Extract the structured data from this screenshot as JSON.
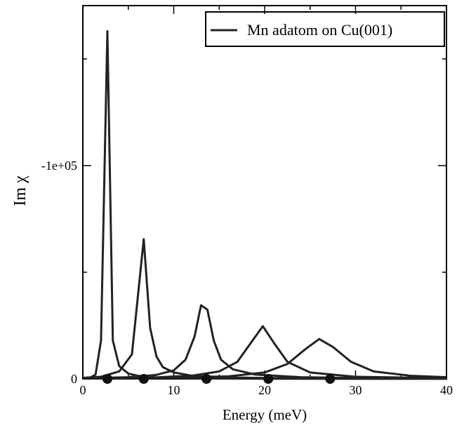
{
  "chart_data": {
    "type": "line",
    "x_label": "Energy (meV)",
    "y_label": "Im χ",
    "xlim": [
      0,
      40
    ],
    "xticks": [
      0,
      10,
      20,
      30,
      40
    ],
    "xminor_ticks": [
      5,
      15,
      25,
      35
    ],
    "ylim": [
      0,
      -175000
    ],
    "yticks": [
      0,
      {
        "value": -100000,
        "label": "-1e+05"
      }
    ],
    "yminor_ticks": [
      -50000,
      -150000
    ],
    "legend": "upper right",
    "series": [
      {
        "name": "Mn adatom on Cu(001)",
        "color": "#222222",
        "x": [
          0.8,
          1.4,
          2.0,
          2.7,
          3.3,
          4.0,
          5,
          6,
          8,
          10,
          14,
          20,
          30,
          40,
          null,
          0,
          2,
          4,
          5.4,
          6.7,
          7.4,
          8.1,
          8.8,
          10,
          12,
          16,
          20,
          30,
          40,
          null,
          0,
          5,
          8,
          10,
          11.3,
          12.3,
          13.0,
          13.7,
          14.4,
          15.2,
          16.5,
          19,
          24,
          30,
          40,
          null,
          0,
          8,
          12,
          15,
          17,
          18.5,
          19.8,
          21,
          22.5,
          25,
          30,
          40,
          null,
          0,
          10,
          16,
          20,
          22.5,
          24.5,
          26,
          27.5,
          29.5,
          32,
          36,
          40
        ],
        "values": [
          -600,
          -2000,
          -18000,
          -163000,
          -18000,
          -6000,
          -2500,
          -1500,
          -700,
          -400,
          -200,
          -100,
          -50,
          -30,
          null,
          -500,
          -1000,
          -3500,
          -11500,
          -65500,
          -24000,
          -10500,
          -5500,
          -3000,
          -1500,
          -700,
          -400,
          -150,
          -80,
          null,
          -300,
          -800,
          -1800,
          -4000,
          -9000,
          -20000,
          -34500,
          -32500,
          -18000,
          -9000,
          -4500,
          -2000,
          -800,
          -400,
          -200,
          null,
          -200,
          -700,
          -1500,
          -3500,
          -8000,
          -17000,
          -24700,
          -17000,
          -8000,
          -3000,
          -1000,
          -300,
          null,
          -200,
          -500,
          -1200,
          -3000,
          -7000,
          -14000,
          -18700,
          -15000,
          -8000,
          -3500,
          -1500,
          -800
        ]
      },
      {
        "type": "scatter",
        "color": "#111111",
        "x": [
          2.7,
          6.7,
          13.6,
          20.4,
          27.2
        ],
        "values": [
          0,
          0,
          0,
          0,
          0
        ]
      }
    ]
  }
}
